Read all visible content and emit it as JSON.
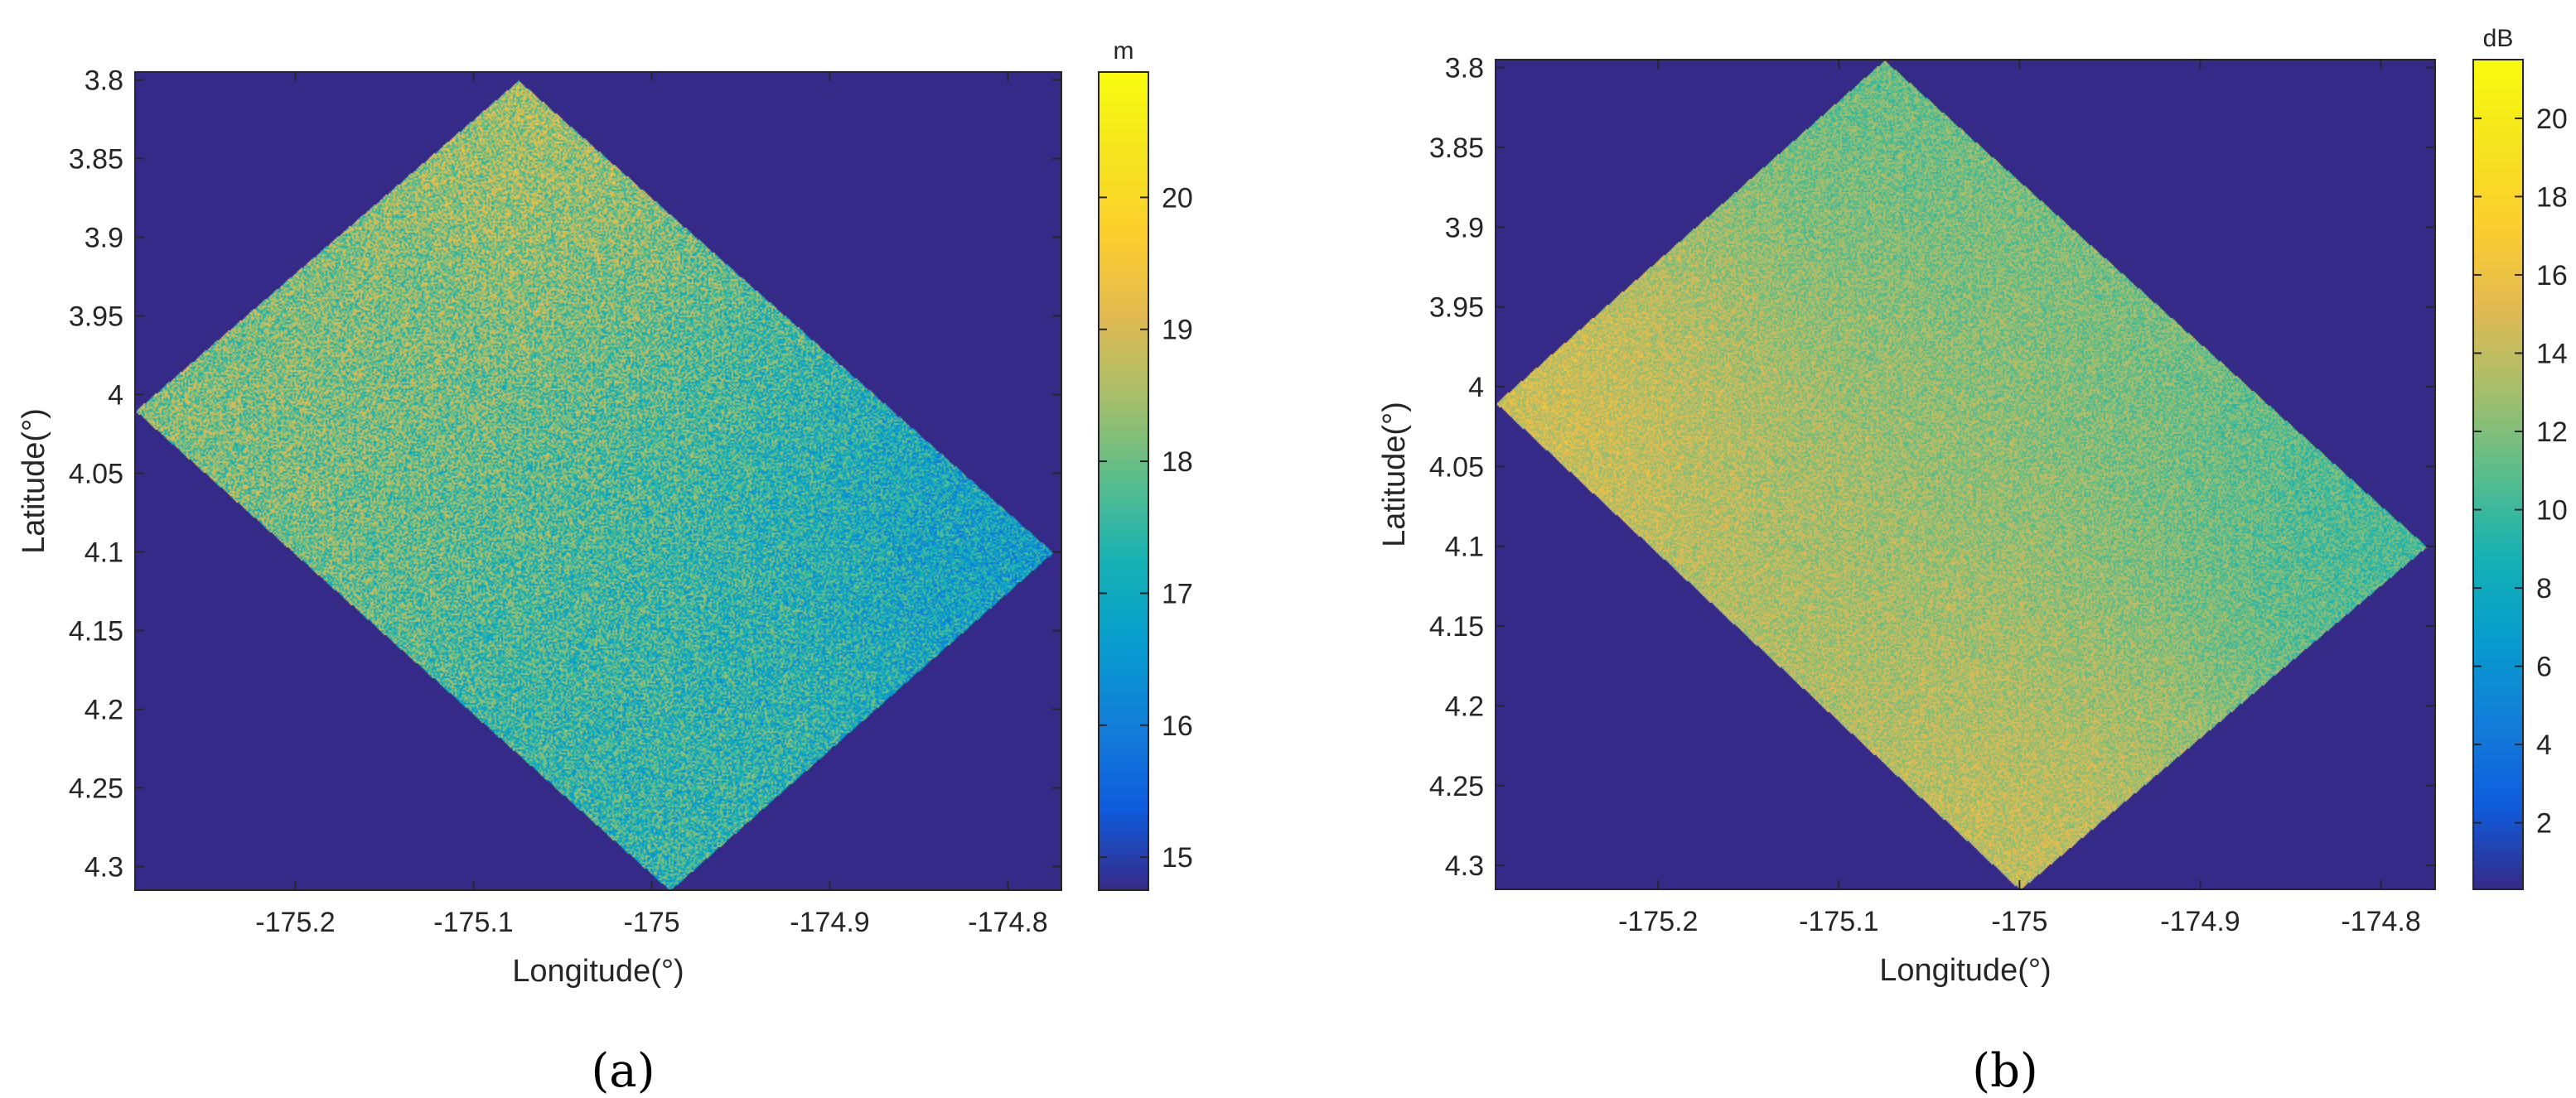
{
  "chart_data": [
    {
      "type": "heatmap",
      "panel_label": "(a)",
      "xlabel": "Longitude(°)",
      "ylabel": "Latitude(°)",
      "colorbar_unit": "m",
      "xlim": [
        -175.29,
        -174.77
      ],
      "ylim": [
        4.315,
        3.795
      ],
      "y_reversed": true,
      "x_ticks": [
        -175.2,
        -175.1,
        -175.0,
        -174.9,
        -174.8
      ],
      "x_tick_labels": [
        "-175.2",
        "-175.1",
        "-175",
        "-174.9",
        "-174.8"
      ],
      "y_ticks": [
        3.8,
        3.85,
        3.9,
        3.95,
        4.0,
        4.05,
        4.1,
        4.15,
        4.2,
        4.25,
        4.3
      ],
      "y_tick_labels": [
        "3.8",
        "3.85",
        "3.9",
        "3.95",
        "4",
        "4.05",
        "4.1",
        "4.15",
        "4.2",
        "4.25",
        "4.3"
      ],
      "color_range": [
        14.75,
        20.95
      ],
      "colorbar_ticks": [
        15,
        16,
        17,
        18,
        19,
        20
      ],
      "colorbar_tick_labels": [
        "15",
        "16",
        "17",
        "18",
        "19",
        "20"
      ],
      "background_value": 14.75,
      "colormap": "parula",
      "data_footprint": {
        "corners": [
          {
            "lon": -175.075,
            "lat": 3.8
          },
          {
            "lon": -174.775,
            "lat": 4.1
          },
          {
            "lon": -174.99,
            "lat": 4.315
          },
          {
            "lon": -175.29,
            "lat": 4.01
          }
        ],
        "corner_values": [
          18.5,
          16.8,
          17.4,
          18.2
        ],
        "noise_amplitude": 1.1
      },
      "grid": false
    },
    {
      "type": "heatmap",
      "panel_label": "(b)",
      "xlabel": "Longitude(°)",
      "ylabel": "Latitude(°)",
      "colorbar_unit": "dB",
      "xlim": [
        -175.29,
        -174.77
      ],
      "ylim": [
        4.315,
        3.795
      ],
      "y_reversed": true,
      "x_ticks": [
        -175.2,
        -175.1,
        -175.0,
        -174.9,
        -174.8
      ],
      "x_tick_labels": [
        "-175.2",
        "-175.1",
        "-175",
        "-174.9",
        "-174.8"
      ],
      "y_ticks": [
        3.8,
        3.85,
        3.9,
        3.95,
        4.0,
        4.05,
        4.1,
        4.15,
        4.2,
        4.25,
        4.3
      ],
      "y_tick_labels": [
        "3.8",
        "3.85",
        "3.9",
        "3.95",
        "4",
        "4.05",
        "4.1",
        "4.15",
        "4.2",
        "4.25",
        "4.3"
      ],
      "color_range": [
        0.3,
        21.5
      ],
      "colorbar_ticks": [
        2,
        4,
        6,
        8,
        10,
        12,
        14,
        16,
        18,
        20
      ],
      "colorbar_tick_labels": [
        "2",
        "4",
        "6",
        "8",
        "10",
        "12",
        "14",
        "16",
        "18",
        "20"
      ],
      "background_value": 0.3,
      "colormap": "parula",
      "data_footprint": {
        "corners": [
          {
            "lon": -175.075,
            "lat": 3.795
          },
          {
            "lon": -174.775,
            "lat": 4.1
          },
          {
            "lon": -175.0,
            "lat": 4.315
          },
          {
            "lon": -175.29,
            "lat": 4.01
          }
        ],
        "corner_values": [
          11.5,
          10.5,
          14.0,
          14.5
        ],
        "noise_amplitude": 2.2
      },
      "grid": false
    }
  ]
}
